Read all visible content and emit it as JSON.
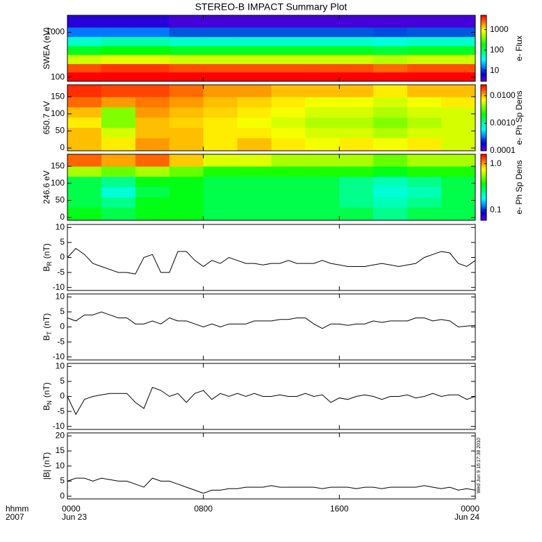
{
  "chart_data": [
    {
      "type": "heatmap",
      "title": "STEREO-B IMPACT Summary Plot",
      "ylabel": "SWEA (eV)",
      "ylog": true,
      "xlim": [
        0,
        24
      ],
      "ylim": [
        81,
        2400
      ],
      "yticks": [
        100,
        1000
      ],
      "xbins": [
        0,
        2,
        4,
        6,
        8,
        10,
        12,
        14,
        16,
        18,
        20,
        22,
        24
      ],
      "ybins": [
        81,
        130,
        200,
        320,
        500,
        800,
        1300,
        2400
      ],
      "z": [
        [
          8000,
          9000,
          9000,
          8500,
          8500,
          8000,
          8000,
          8000,
          8000,
          7000,
          8000,
          8000
        ],
        [
          3000,
          3500,
          3500,
          3000,
          3000,
          3000,
          3000,
          3000,
          3000,
          2500,
          3000,
          3000
        ],
        [
          700,
          800,
          800,
          700,
          700,
          700,
          700,
          700,
          700,
          600,
          700,
          700
        ],
        [
          150,
          180,
          180,
          150,
          150,
          150,
          150,
          150,
          150,
          130,
          150,
          150
        ],
        [
          50,
          60,
          60,
          50,
          50,
          50,
          50,
          50,
          50,
          45,
          50,
          50
        ],
        [
          15,
          15,
          15,
          13,
          13,
          13,
          13,
          13,
          13,
          12,
          13,
          13
        ],
        [
          5,
          5,
          5,
          4,
          4,
          4,
          4,
          4,
          4,
          4,
          4,
          4
        ]
      ],
      "colorbar": {
        "label": "e- Flux",
        "log": true,
        "zlim": [
          3,
          5000
        ],
        "ticks": [
          10,
          100,
          1000
        ]
      }
    },
    {
      "type": "heatmap",
      "ylabel": "650.7 eV",
      "ylog": false,
      "xlim": [
        0,
        24
      ],
      "ylim": [
        -8,
        185
      ],
      "yticks": [
        0,
        50,
        100,
        150
      ],
      "xbins": [
        0,
        2,
        4,
        6,
        8,
        10,
        12,
        14,
        16,
        18,
        20,
        22,
        24
      ],
      "ybins": [
        -8,
        30,
        60,
        90,
        120,
        150,
        185
      ],
      "z": [
        [
          0.01,
          0.008,
          0.012,
          0.01,
          0.008,
          0.01,
          0.008,
          0.007,
          0.008,
          0.007,
          0.008,
          0.006
        ],
        [
          0.01,
          0.006,
          0.01,
          0.01,
          0.008,
          0.008,
          0.007,
          0.006,
          0.006,
          0.005,
          0.006,
          0.006
        ],
        [
          0.008,
          0.004,
          0.01,
          0.009,
          0.008,
          0.007,
          0.006,
          0.005,
          0.005,
          0.004,
          0.005,
          0.006
        ],
        [
          0.01,
          0.004,
          0.012,
          0.01,
          0.009,
          0.008,
          0.007,
          0.006,
          0.006,
          0.005,
          0.006,
          0.006
        ],
        [
          0.015,
          0.012,
          0.014,
          0.012,
          0.01,
          0.009,
          0.008,
          0.007,
          0.007,
          0.006,
          0.007,
          0.008
        ],
        [
          0.02,
          0.018,
          0.018,
          0.015,
          0.012,
          0.012,
          0.01,
          0.01,
          0.01,
          0.008,
          0.01,
          0.01
        ]
      ],
      "colorbar": {
        "label": "e- Ph Sp Dens",
        "log": true,
        "zlim": [
          0.0001,
          0.025
        ],
        "ticks": [
          {
            "value": 0.0001,
            "label": "0.0001"
          },
          {
            "value": 0.001,
            "label": "0.0010"
          },
          {
            "value": 0.01,
            "label": "0.0100"
          }
        ]
      }
    },
    {
      "type": "heatmap",
      "ylabel": "246.6 eV",
      "ylog": false,
      "xlim": [
        0,
        24
      ],
      "ylim": [
        -8,
        185
      ],
      "yticks": [
        0,
        50,
        100,
        150
      ],
      "xbins": [
        0,
        2,
        4,
        6,
        8,
        10,
        12,
        14,
        16,
        18,
        20,
        22,
        24
      ],
      "ybins": [
        -8,
        30,
        60,
        90,
        120,
        150,
        185
      ],
      "z": [
        [
          0.35,
          0.3,
          0.35,
          0.35,
          0.3,
          0.3,
          0.3,
          0.3,
          0.3,
          0.25,
          0.3,
          0.3
        ],
        [
          0.3,
          0.25,
          0.35,
          0.35,
          0.3,
          0.3,
          0.3,
          0.3,
          0.25,
          0.22,
          0.25,
          0.3
        ],
        [
          0.3,
          0.2,
          0.3,
          0.35,
          0.3,
          0.3,
          0.3,
          0.3,
          0.25,
          0.2,
          0.22,
          0.3
        ],
        [
          0.3,
          0.25,
          0.35,
          0.35,
          0.3,
          0.3,
          0.3,
          0.3,
          0.25,
          0.22,
          0.25,
          0.3
        ],
        [
          0.6,
          0.5,
          0.6,
          0.5,
          0.4,
          0.4,
          0.4,
          0.4,
          0.4,
          0.35,
          0.4,
          0.4
        ],
        [
          1.2,
          1.0,
          1.2,
          0.9,
          0.7,
          0.7,
          0.6,
          0.6,
          0.6,
          0.5,
          0.6,
          0.6
        ]
      ],
      "colorbar": {
        "label": "e- Ph Sp Dens",
        "log": true,
        "zlim": [
          0.06,
          1.6
        ],
        "ticks": [
          0.1,
          {
            "value": 1,
            "label": "1.0"
          }
        ]
      }
    },
    {
      "type": "line",
      "ylabel": "B",
      "ylabel_sub": "R",
      "ylabel_unit": "(nT)",
      "color": "#000000",
      "xlim": [
        0,
        24
      ],
      "ylim": [
        -11,
        11
      ],
      "yticks": [
        -10,
        -5,
        0,
        5,
        10
      ],
      "x": [
        0,
        0.5,
        1,
        1.5,
        2,
        2.5,
        3,
        3.5,
        4,
        4.5,
        5,
        5.5,
        6,
        6.5,
        7,
        7.5,
        8,
        8.5,
        9,
        9.5,
        10,
        10.5,
        11,
        11.5,
        12,
        12.5,
        13,
        13.5,
        14,
        14.5,
        15,
        15.5,
        16,
        16.5,
        17,
        17.5,
        18,
        18.5,
        19,
        19.5,
        20,
        20.5,
        21,
        21.5,
        22,
        22.5,
        23,
        23.5,
        24
      ],
      "values": [
        0,
        3,
        1,
        -2,
        -3,
        -4,
        -5,
        -5,
        -5.5,
        0,
        1,
        -5,
        -5,
        2,
        2,
        -1,
        -3,
        -1,
        -2,
        0,
        -1,
        -2,
        -2,
        -2.5,
        -2,
        -2,
        -1,
        -2,
        -2,
        -2,
        -1,
        -2,
        -2.5,
        -3,
        -3,
        -3,
        -2.5,
        -2,
        -2.5,
        -3,
        -2.5,
        -2,
        0,
        1,
        2,
        1.5,
        -2,
        -3,
        -1
      ]
    },
    {
      "type": "line",
      "ylabel": "B",
      "ylabel_sub": "T",
      "ylabel_unit": "(nT)",
      "color": "#000000",
      "xlim": [
        0,
        24
      ],
      "ylim": [
        -11,
        11
      ],
      "yticks": [
        -10,
        -5,
        0,
        5,
        10
      ],
      "x": [
        0,
        0.5,
        1,
        1.5,
        2,
        2.5,
        3,
        3.5,
        4,
        4.5,
        5,
        5.5,
        6,
        6.5,
        7,
        7.5,
        8,
        8.5,
        9,
        9.5,
        10,
        10.5,
        11,
        11.5,
        12,
        12.5,
        13,
        13.5,
        14,
        14.5,
        15,
        15.5,
        16,
        16.5,
        17,
        17.5,
        18,
        18.5,
        19,
        19.5,
        20,
        20.5,
        21,
        21.5,
        22,
        22.5,
        23,
        23.5,
        24
      ],
      "values": [
        3,
        2,
        4,
        4,
        5,
        4,
        3,
        3,
        1,
        1,
        2,
        1,
        3,
        2,
        2,
        1,
        0,
        1,
        0,
        1,
        1,
        1,
        2,
        2,
        2,
        2.5,
        2.5,
        3,
        3,
        1,
        -0.5,
        1,
        1,
        0.5,
        1,
        1,
        2,
        1.5,
        2,
        2,
        2,
        3,
        3,
        2,
        2.5,
        2,
        0,
        0.3,
        0.5
      ]
    },
    {
      "type": "line",
      "ylabel": "B",
      "ylabel_sub": "N",
      "ylabel_unit": "(nT)",
      "color": "#000000",
      "xlim": [
        0,
        24
      ],
      "ylim": [
        -11,
        11
      ],
      "yticks": [
        -10,
        -5,
        0,
        5,
        10
      ],
      "x": [
        0,
        0.5,
        1,
        1.5,
        2,
        2.5,
        3,
        3.5,
        4,
        4.5,
        5,
        5.5,
        6,
        6.5,
        7,
        7.5,
        8,
        8.5,
        9,
        9.5,
        10,
        10.5,
        11,
        11.5,
        12,
        12.5,
        13,
        13.5,
        14,
        14.5,
        15,
        15.5,
        16,
        16.5,
        17,
        17.5,
        18,
        18.5,
        19,
        19.5,
        20,
        20.5,
        21,
        21.5,
        22,
        22.5,
        23,
        23.5,
        24
      ],
      "values": [
        0,
        -6,
        -1,
        0,
        0.5,
        1,
        1,
        1,
        -2,
        -4,
        3,
        2,
        0,
        1,
        -2,
        1,
        2,
        -1,
        1,
        0,
        1,
        0,
        1,
        0,
        0,
        0.5,
        0,
        0,
        1,
        0,
        0.5,
        -2,
        -0.5,
        -1,
        0,
        0.5,
        0,
        -1,
        0,
        0,
        0.5,
        -0.5,
        0,
        1,
        0,
        0.5,
        0.5,
        -1,
        0
      ]
    },
    {
      "type": "line",
      "ylabel": "|B| (nT)",
      "color": "#000000",
      "xlim": [
        0,
        24
      ],
      "ylim": [
        -0.9,
        21
      ],
      "yticks": [
        0,
        5,
        10,
        15,
        20
      ],
      "x": [
        0,
        0.5,
        1,
        1.5,
        2,
        2.5,
        3,
        3.5,
        4,
        4.5,
        5,
        5.5,
        6,
        6.5,
        7,
        7.5,
        8,
        8.5,
        9,
        9.5,
        10,
        10.5,
        11,
        11.5,
        12,
        12.5,
        13,
        13.5,
        14,
        14.5,
        15,
        15.5,
        16,
        16.5,
        17,
        17.5,
        18,
        18.5,
        19,
        19.5,
        20,
        20.5,
        21,
        21.5,
        22,
        22.5,
        23,
        23.5,
        24
      ],
      "values": [
        5,
        6,
        6,
        5,
        6,
        5.5,
        5,
        5,
        4,
        3,
        6,
        5,
        5,
        4,
        3,
        2,
        1,
        2,
        2,
        2.5,
        2.5,
        3,
        3,
        3,
        3.5,
        3,
        3,
        3,
        3,
        3,
        2.5,
        3,
        3,
        3,
        2.5,
        3,
        3,
        2.5,
        3,
        3,
        3,
        3,
        3.5,
        3,
        2.5,
        3,
        2,
        2.5,
        2
      ],
      "xticks": [
        {
          "value": 0,
          "label": "0000"
        },
        {
          "value": 8,
          "label": "0800"
        },
        {
          "value": 16,
          "label": "1600"
        },
        {
          "value": 24,
          "label": "0000"
        }
      ],
      "date_labels": [
        {
          "value": 0,
          "label": "Jun 23"
        },
        {
          "value": 24,
          "label": "Jun 24"
        }
      ],
      "row_labels": [
        "hhmm",
        "2007"
      ],
      "timestamp": "Wed Jun  9 16:17:38 2010"
    }
  ]
}
